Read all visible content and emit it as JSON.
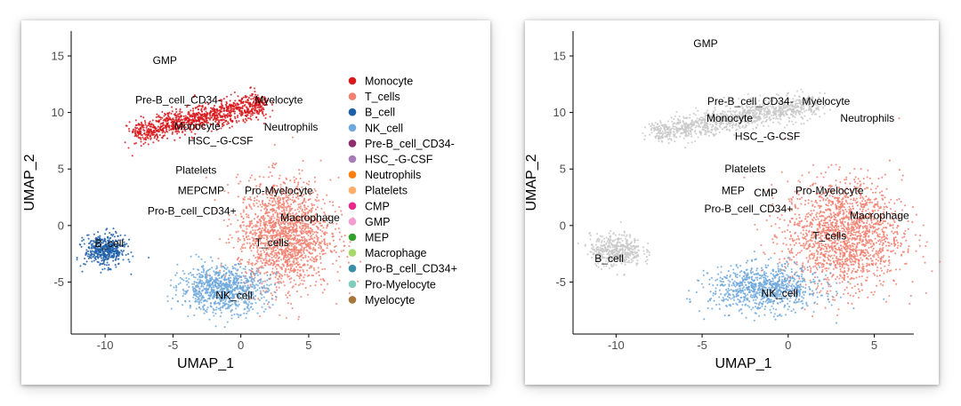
{
  "chart_data": [
    {
      "type": "scatter",
      "title": "",
      "xlabel": "UMAP_1",
      "ylabel": "UMAP_2",
      "xlim": [
        -12.5,
        7.3
      ],
      "ylim": [
        -9.6,
        17.2
      ],
      "xticks": [
        -10,
        -5,
        0,
        5
      ],
      "yticks": [
        -5,
        0,
        5,
        10,
        15
      ],
      "grid": false,
      "legend": "right",
      "series": [
        {
          "name": "Monocyte",
          "color": "#d7191c"
        },
        {
          "name": "T_cells",
          "color": "#f08070"
        },
        {
          "name": "B_cell",
          "color": "#1f5fa8"
        },
        {
          "name": "NK_cell",
          "color": "#6fa8dc"
        },
        {
          "name": "Pre-B_cell_CD34-",
          "color": "#8e2c6e"
        },
        {
          "name": "HSC_-G-CSF",
          "color": "#a77bb5"
        },
        {
          "name": "Neutrophils",
          "color": "#ff7f0e"
        },
        {
          "name": "Platelets",
          "color": "#fdae6b"
        },
        {
          "name": "CMP",
          "color": "#e7298a"
        },
        {
          "name": "GMP",
          "color": "#f29ed1"
        },
        {
          "name": "MEP",
          "color": "#33a02c"
        },
        {
          "name": "Macrophage",
          "color": "#a6d96a"
        },
        {
          "name": "Pro-B_cell_CD34+",
          "color": "#3b8ea5"
        },
        {
          "name": "Pro-Myelocyte",
          "color": "#7fcdbb"
        },
        {
          "name": "Myelocyte",
          "color": "#a6763c"
        }
      ],
      "clusters": [
        {
          "name": "Monocyte",
          "center": [
            -2,
            9.4
          ],
          "color_index": 0
        },
        {
          "name": "T_cells",
          "center": [
            3.5,
            -1.5
          ],
          "color_index": 1
        },
        {
          "name": "B_cell",
          "center": [
            -10,
            -2.2
          ],
          "color_index": 2
        },
        {
          "name": "NK_cell",
          "center": [
            -0.8,
            -5.5
          ],
          "color_index": 3
        }
      ],
      "labels": [
        {
          "text": "GMP",
          "x": -5.6,
          "y": 14.6
        },
        {
          "text": "Pre-B_cell_CD34-",
          "x": -4.6,
          "y": 11.1
        },
        {
          "text": "Myelocyte",
          "x": 2.8,
          "y": 11.1
        },
        {
          "text": "Neutrophils",
          "x": 3.7,
          "y": 8.7
        },
        {
          "text": "Monocyte",
          "x": -3.2,
          "y": 8.8
        },
        {
          "text": "HSC_-G-CSF",
          "x": -1.5,
          "y": 7.5
        },
        {
          "text": "Platelets",
          "x": -3.3,
          "y": 4.9
        },
        {
          "text": "MEP",
          "x": -3.8,
          "y": 3.1
        },
        {
          "text": "CMP",
          "x": -2.1,
          "y": 3.1
        },
        {
          "text": "Pro-Myelocyte",
          "x": 2.8,
          "y": 3.1
        },
        {
          "text": "Pro-B_cell_CD34+",
          "x": -3.6,
          "y": 1.3
        },
        {
          "text": "Macrophage",
          "x": 5.1,
          "y": 0.7
        },
        {
          "text": "T_cells",
          "x": 2.3,
          "y": -1.5
        },
        {
          "text": "B_cell",
          "x": -9.7,
          "y": -1.6
        },
        {
          "text": "NK_cell",
          "x": -0.5,
          "y": -6.2
        }
      ]
    },
    {
      "type": "scatter",
      "title": "",
      "xlabel": "UMAP_1",
      "ylabel": "UMAP_2",
      "xlim": [
        -12.5,
        7.3
      ],
      "ylim": [
        -9.6,
        17.2
      ],
      "xticks": [
        -10,
        -5,
        0,
        5
      ],
      "yticks": [
        -5,
        0,
        5,
        10,
        15
      ],
      "grid": false,
      "legend": "none",
      "series": [
        {
          "color": "#c8c8c8"
        },
        {
          "color": "#f08070"
        },
        {
          "color": "#6fa8dc"
        }
      ],
      "clusters": [
        {
          "name": "Monocyte",
          "center": [
            -2,
            9.4
          ],
          "color_index": 0
        },
        {
          "name": "T_cells",
          "center": [
            3.5,
            -1.5
          ],
          "color_index": 1
        },
        {
          "name": "B_cell",
          "center": [
            -10,
            -2.2
          ],
          "color_index": 0
        },
        {
          "name": "NK_cell",
          "center": [
            -0.8,
            -5.5
          ],
          "color_index": 2
        }
      ],
      "labels": [
        {
          "text": "GMP",
          "x": -4.8,
          "y": 16.1
        },
        {
          "text": "Pre-B_cell_CD34-",
          "x": -2.2,
          "y": 11.0
        },
        {
          "text": "Myelocyte",
          "x": 2.2,
          "y": 11.0
        },
        {
          "text": "Monocyte",
          "x": -3.4,
          "y": 9.5
        },
        {
          "text": "Neutrophils",
          "x": 4.6,
          "y": 9.5
        },
        {
          "text": "HSC_-G-CSF",
          "x": -1.2,
          "y": 7.9
        },
        {
          "text": "Platelets",
          "x": -2.5,
          "y": 5.0
        },
        {
          "text": "MEP",
          "x": -3.2,
          "y": 3.1
        },
        {
          "text": "CMP",
          "x": -1.3,
          "y": 2.9
        },
        {
          "text": "Pro-Myelocyte",
          "x": 2.4,
          "y": 3.1
        },
        {
          "text": "Pro-B_cell_CD34+",
          "x": -2.3,
          "y": 1.5
        },
        {
          "text": "Macrophage",
          "x": 5.3,
          "y": 0.9
        },
        {
          "text": "T_cells",
          "x": 2.4,
          "y": -0.9
        },
        {
          "text": "B_cell",
          "x": -10.4,
          "y": -2.9
        },
        {
          "text": "NK_cell",
          "x": -0.5,
          "y": -6.0
        }
      ]
    }
  ]
}
